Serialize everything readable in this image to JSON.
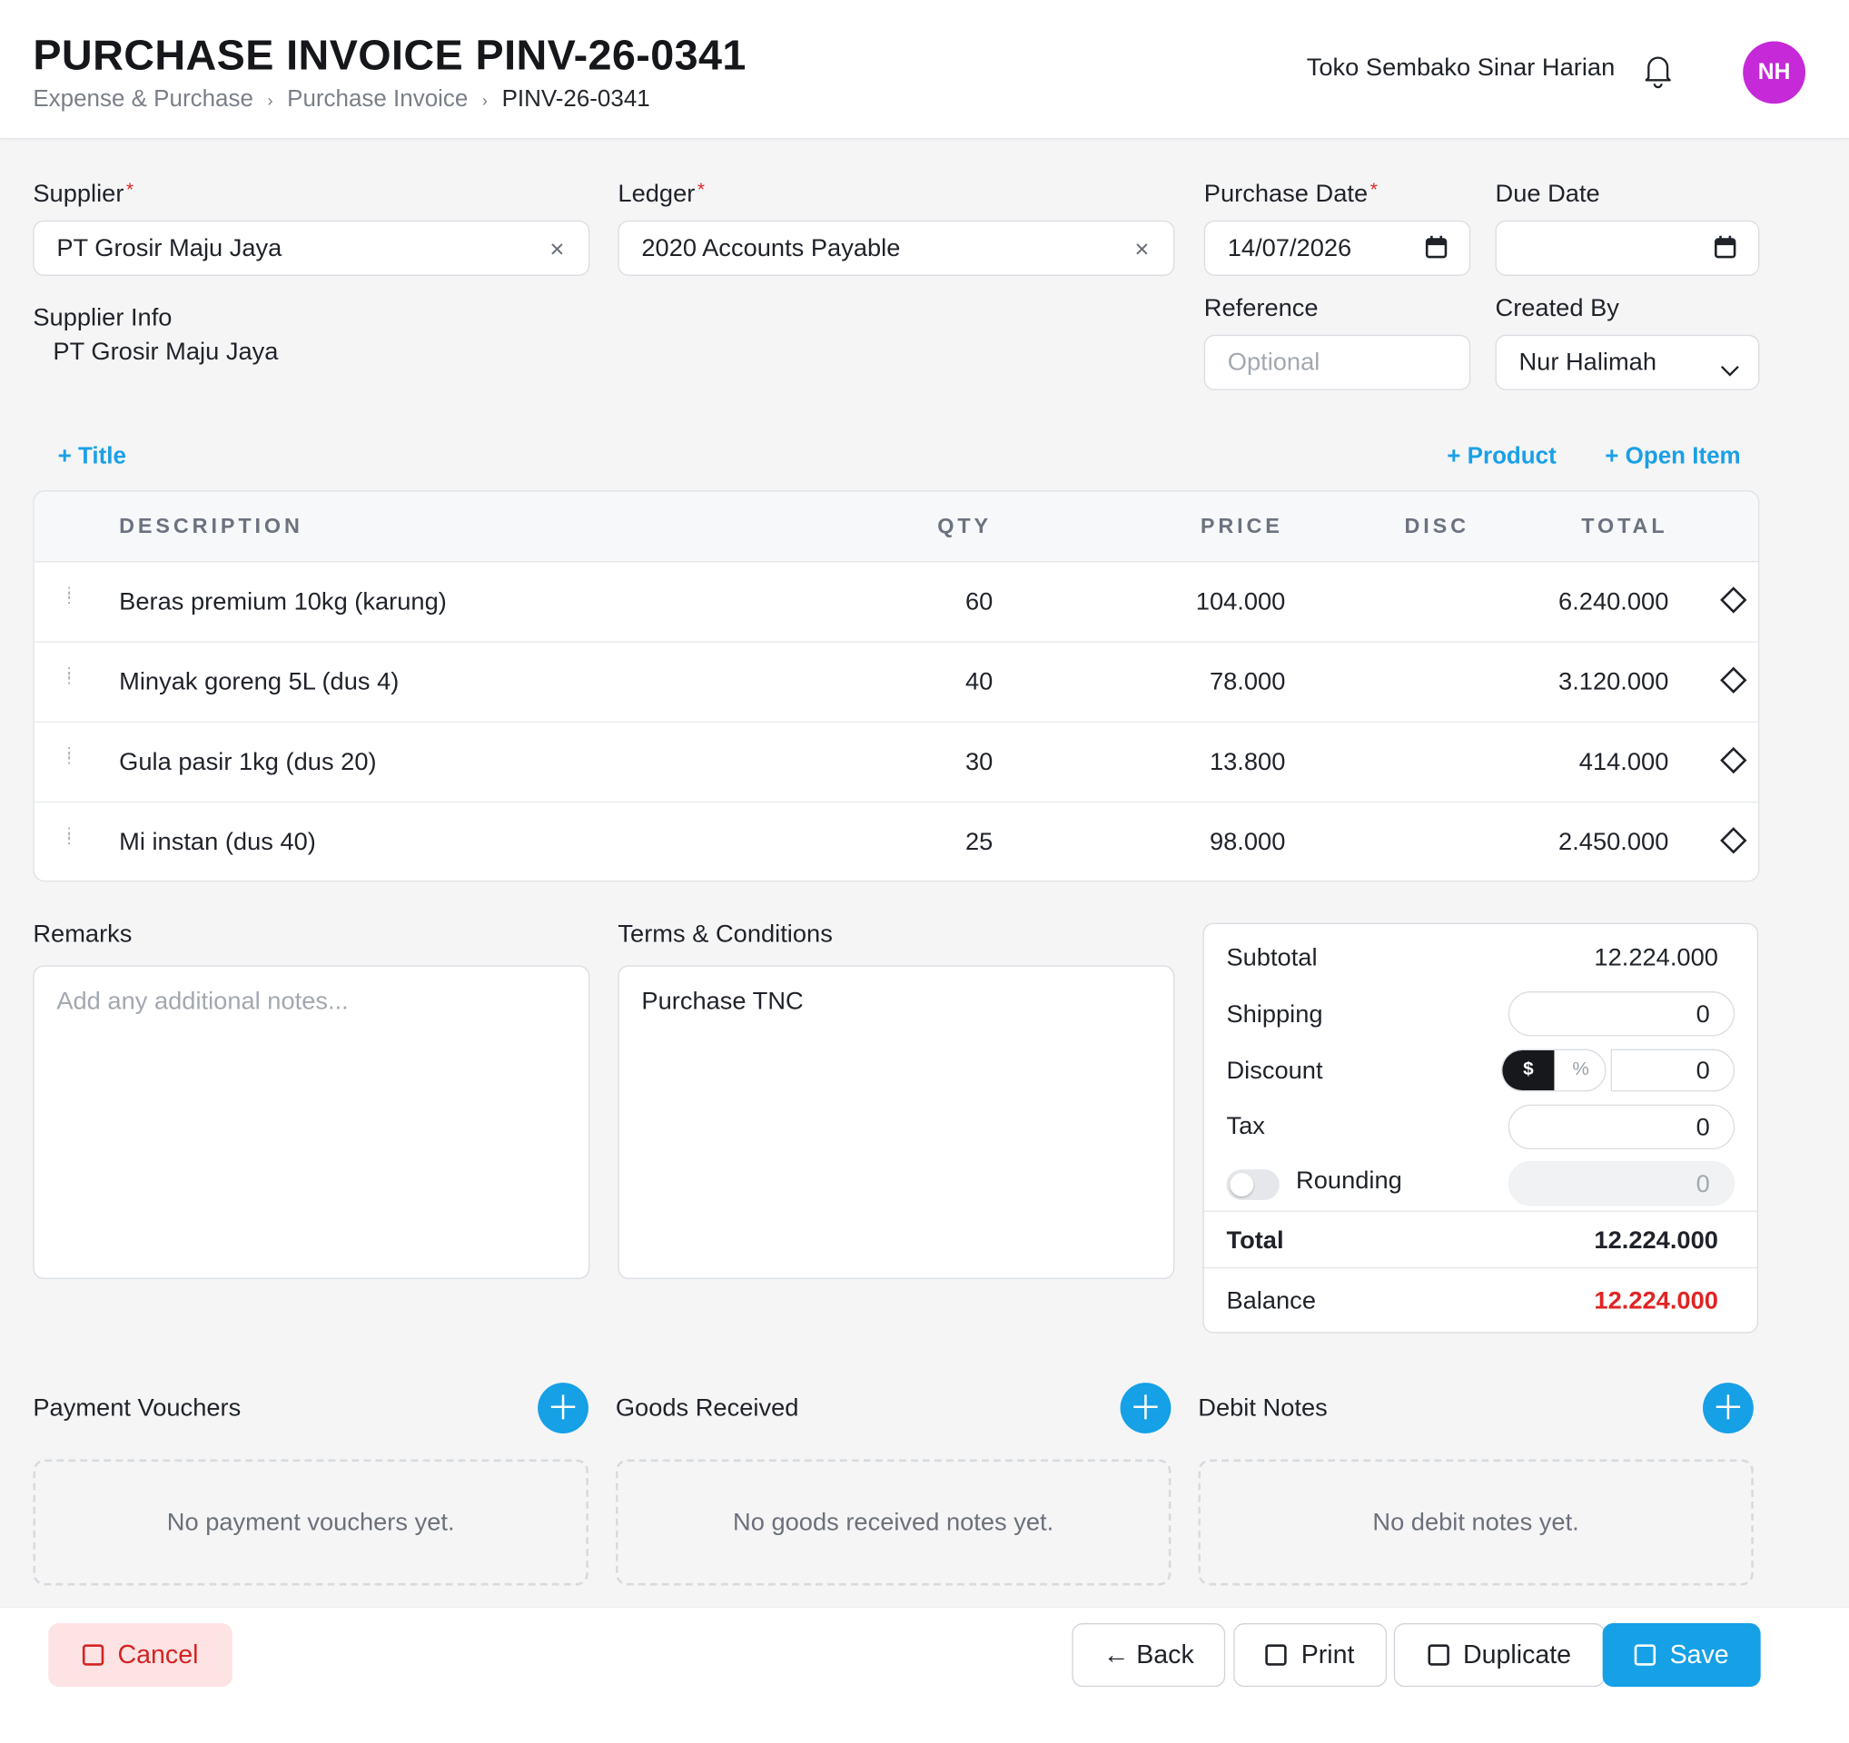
{
  "header": {
    "title": "PURCHASE INVOICE PINV-26-0341",
    "breadcrumb": [
      "Expense & Purchase",
      "Purchase Invoice",
      "PINV-26-0341"
    ],
    "company": "Toko Sembako Sinar Harian",
    "avatar_initials": "NH",
    "avatar_color": "#c529d8"
  },
  "form": {
    "supplier_label": "Supplier",
    "supplier_value": "PT Grosir Maju Jaya",
    "ledger_label": "Ledger",
    "ledger_value": "2020 Accounts Payable",
    "purchase_date_label": "Purchase Date",
    "purchase_date_value": "14/07/2026",
    "due_date_label": "Due Date",
    "due_date_value": "",
    "reference_label": "Reference",
    "reference_placeholder": "Optional",
    "created_by_label": "Created By",
    "created_by_value": "Nur Halimah",
    "supplier_info_label": "Supplier Info",
    "supplier_info_value": "PT Grosir Maju Jaya",
    "required_mark": "*"
  },
  "actions": {
    "add_title": "+ Title",
    "add_product": "+ Product",
    "add_open_item": "+ Open Item"
  },
  "table": {
    "headers": {
      "description": "DESCRIPTION",
      "qty": "QTY",
      "price": "PRICE",
      "disc": "DISC",
      "total": "TOTAL"
    },
    "rows": [
      {
        "description": "Beras premium 10kg (karung)",
        "qty": "60",
        "price": "104.000",
        "disc": "",
        "total": "6.240.000"
      },
      {
        "description": "Minyak goreng 5L (dus 4)",
        "qty": "40",
        "price": "78.000",
        "disc": "",
        "total": "3.120.000"
      },
      {
        "description": "Gula pasir 1kg (dus 20)",
        "qty": "30",
        "price": "13.800",
        "disc": "",
        "total": "414.000"
      },
      {
        "description": "Mi instan (dus 40)",
        "qty": "25",
        "price": "98.000",
        "disc": "",
        "total": "2.450.000"
      }
    ]
  },
  "remarks": {
    "label": "Remarks",
    "placeholder": "Add any additional notes..."
  },
  "terms": {
    "label": "Terms & Conditions",
    "value": "Purchase TNC"
  },
  "totals": {
    "subtotal_label": "Subtotal",
    "subtotal_value": "12.224.000",
    "shipping_label": "Shipping",
    "shipping_value": "0",
    "discount_label": "Discount",
    "discount_mode_fixed": "$",
    "discount_mode_percent": "%",
    "discount_value": "0",
    "tax_label": "Tax",
    "tax_value": "0",
    "rounding_label": "Rounding",
    "rounding_value": "0",
    "total_label": "Total",
    "total_value": "12.224.000",
    "balance_label": "Balance",
    "balance_value": "12.224.000",
    "balance_color": "#e02424"
  },
  "sections": {
    "payment_vouchers": {
      "title": "Payment Vouchers",
      "empty": "No payment vouchers yet."
    },
    "goods_received": {
      "title": "Goods Received",
      "empty": "No goods received notes yet."
    },
    "debit_notes": {
      "title": "Debit Notes",
      "empty": "No debit notes yet."
    }
  },
  "footer": {
    "cancel": "Cancel",
    "back": "← Back",
    "print": "Print",
    "duplicate": "Duplicate",
    "save": "Save"
  },
  "colors": {
    "accent": "#16a0e6",
    "danger": "#e02424"
  }
}
